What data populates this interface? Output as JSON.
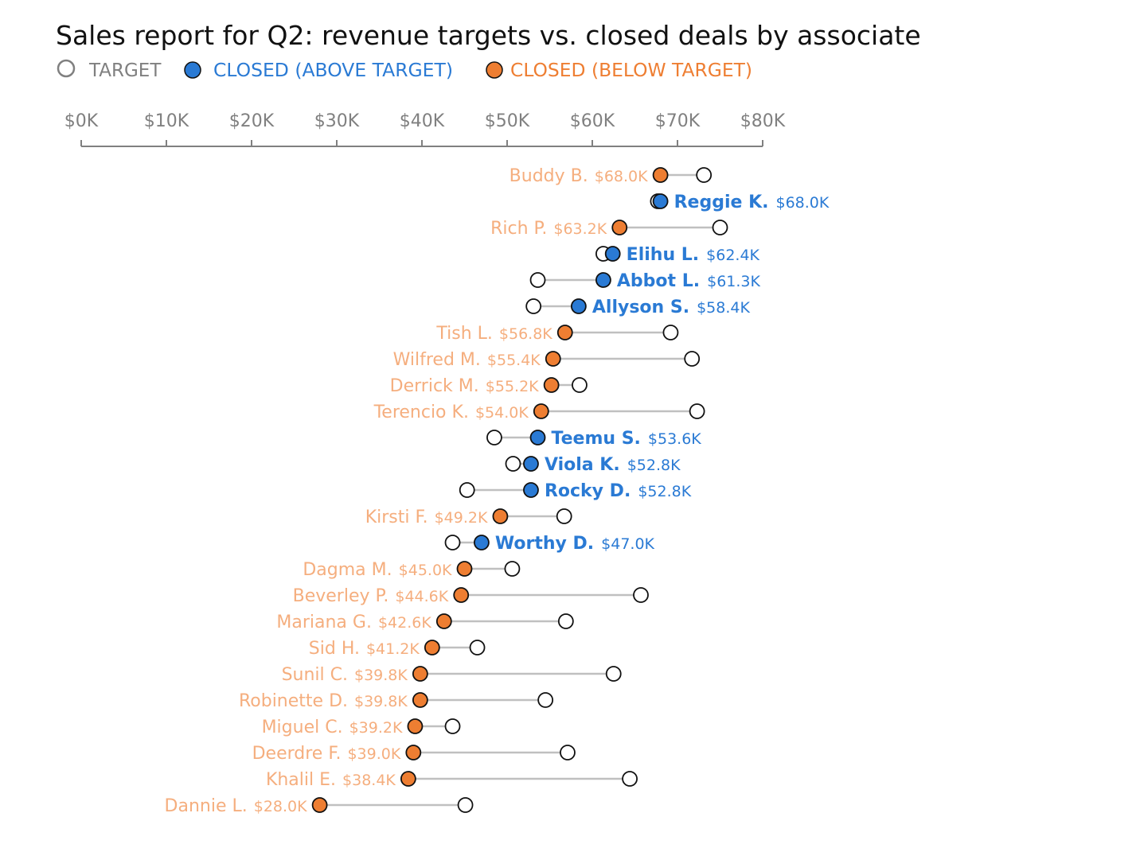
{
  "chart_data": {
    "type": "dot-plot",
    "title": "Sales report for Q2: revenue targets vs. closed deals by associate",
    "legend": {
      "placement": "top-left",
      "entries": [
        {
          "label": "TARGET",
          "color": "#808080"
        },
        {
          "label": "CLOSED (ABOVE TARGET)",
          "color": "#2A7AD4"
        },
        {
          "label": "CLOSED (BELOW TARGET)",
          "color": "#EE7E32"
        }
      ]
    },
    "x_axis": {
      "position": "top",
      "range": [
        0,
        80
      ],
      "ticks": [
        0,
        10,
        20,
        30,
        40,
        50,
        60,
        70,
        80
      ],
      "tick_labels": [
        "$0K",
        "$10K",
        "$20K",
        "$30K",
        "$40K",
        "$50K",
        "$60K",
        "$70K",
        "$80K"
      ]
    },
    "colors": {
      "above": "#2A7AD4",
      "below": "#EE7E32",
      "below_label": "#F5AE7E",
      "connector": "#C0C0C0",
      "axis": "#808080"
    },
    "associates": [
      {
        "name": "Buddy B.",
        "closed": 68.0,
        "closed_label": "$68.0K",
        "target": 73.1
      },
      {
        "name": "Reggie K.",
        "closed": 68.0,
        "closed_label": "$68.0K",
        "target": 67.7
      },
      {
        "name": "Rich P.",
        "closed": 63.2,
        "closed_label": "$63.2K",
        "target": 75.0
      },
      {
        "name": "Elihu L.",
        "closed": 62.4,
        "closed_label": "$62.4K",
        "target": 61.3
      },
      {
        "name": "Abbot L.",
        "closed": 61.3,
        "closed_label": "$61.3K",
        "target": 53.6
      },
      {
        "name": "Allyson S.",
        "closed": 58.4,
        "closed_label": "$58.4K",
        "target": 53.1
      },
      {
        "name": "Tish L.",
        "closed": 56.8,
        "closed_label": "$56.8K",
        "target": 69.2
      },
      {
        "name": "Wilfred M.",
        "closed": 55.4,
        "closed_label": "$55.4K",
        "target": 71.7
      },
      {
        "name": "Derrick M.",
        "closed": 55.2,
        "closed_label": "$55.2K",
        "target": 58.5
      },
      {
        "name": "Terencio K.",
        "closed": 54.0,
        "closed_label": "$54.0K",
        "target": 72.3
      },
      {
        "name": "Teemu S.",
        "closed": 53.6,
        "closed_label": "$53.6K",
        "target": 48.5
      },
      {
        "name": "Viola K.",
        "closed": 52.8,
        "closed_label": "$52.8K",
        "target": 50.7
      },
      {
        "name": "Rocky D.",
        "closed": 52.8,
        "closed_label": "$52.8K",
        "target": 45.3
      },
      {
        "name": "Kirsti F.",
        "closed": 49.2,
        "closed_label": "$49.2K",
        "target": 56.7
      },
      {
        "name": "Worthy D.",
        "closed": 47.0,
        "closed_label": "$47.0K",
        "target": 43.6
      },
      {
        "name": "Dagma M.",
        "closed": 45.0,
        "closed_label": "$45.0K",
        "target": 50.6
      },
      {
        "name": "Beverley P.",
        "closed": 44.6,
        "closed_label": "$44.6K",
        "target": 65.7
      },
      {
        "name": "Mariana G.",
        "closed": 42.6,
        "closed_label": "$42.6K",
        "target": 56.9
      },
      {
        "name": "Sid H.",
        "closed": 41.2,
        "closed_label": "$41.2K",
        "target": 46.5
      },
      {
        "name": "Sunil C.",
        "closed": 39.8,
        "closed_label": "$39.8K",
        "target": 62.5
      },
      {
        "name": "Robinette D.",
        "closed": 39.8,
        "closed_label": "$39.8K",
        "target": 54.5
      },
      {
        "name": "Miguel C.",
        "closed": 39.2,
        "closed_label": "$39.2K",
        "target": 43.6
      },
      {
        "name": "Deerdre F.",
        "closed": 39.0,
        "closed_label": "$39.0K",
        "target": 57.1
      },
      {
        "name": "Khalil E.",
        "closed": 38.4,
        "closed_label": "$38.4K",
        "target": 64.4
      },
      {
        "name": "Dannie L.",
        "closed": 28.0,
        "closed_label": "$28.0K",
        "target": 45.1
      }
    ]
  }
}
